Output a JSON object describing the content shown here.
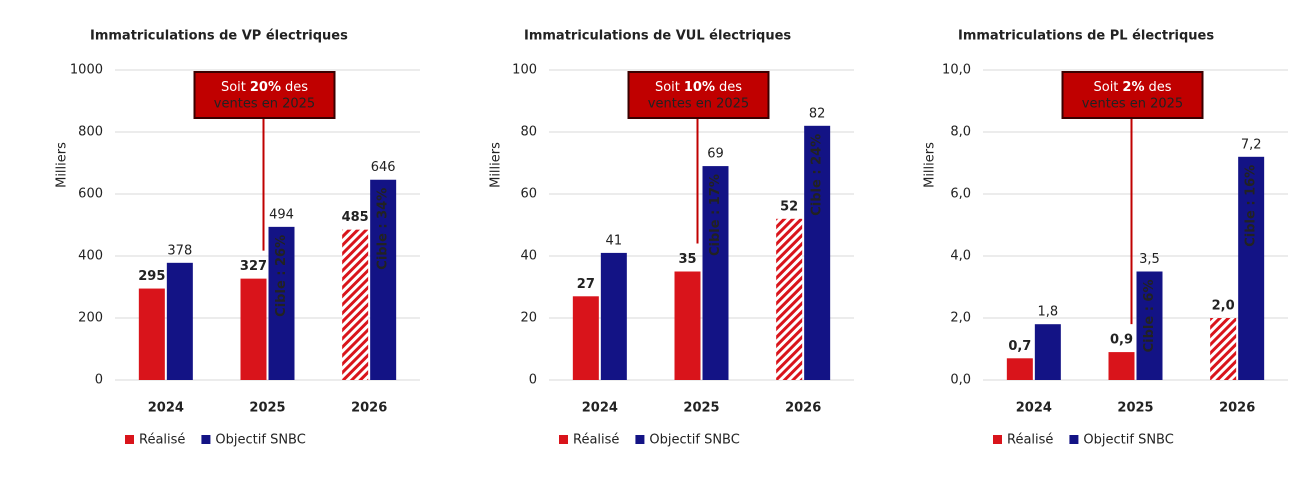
{
  "chart_data": [
    {
      "type": "bar",
      "title": "Immatriculations de VP électriques",
      "y_label": "Milliers",
      "categories": [
        "2024",
        "2025",
        "2026"
      ],
      "series": [
        {
          "name": "Réalisé",
          "color": "#d9141b",
          "values": [
            295,
            327,
            485
          ],
          "hatched": [
            false,
            false,
            true
          ]
        },
        {
          "name": "Objectif SNBC",
          "color": "#131385",
          "values": [
            378,
            494,
            646
          ],
          "inner_labels": [
            null,
            "Cible : 26%",
            "Cible : 34%"
          ]
        }
      ],
      "ylim": [
        0,
        1000
      ],
      "yticks": [
        0,
        200,
        400,
        600,
        800,
        1000
      ],
      "grid": true,
      "annotation": [
        "Soit",
        "20%",
        "des",
        "ventes en 2025"
      ]
    },
    {
      "type": "bar",
      "title": "Immatriculations de VUL électriques",
      "y_label": "Milliers",
      "categories": [
        "2024",
        "2025",
        "2026"
      ],
      "series": [
        {
          "name": "Réalisé",
          "color": "#d9141b",
          "values": [
            27,
            35,
            52
          ],
          "hatched": [
            false,
            false,
            true
          ]
        },
        {
          "name": "Objectif SNBC",
          "color": "#131385",
          "values": [
            41,
            69,
            82
          ],
          "inner_labels": [
            null,
            "Cible : 17%",
            "Cible : 24%"
          ]
        }
      ],
      "ylim": [
        0,
        100
      ],
      "yticks": [
        0,
        20,
        40,
        60,
        80,
        100
      ],
      "grid": true,
      "annotation": [
        "Soit",
        "10%",
        "des",
        "ventes en 2025"
      ]
    },
    {
      "type": "bar",
      "title": "Immatriculations de PL électriques",
      "y_label": "Milliers",
      "categories": [
        "2024",
        "2025",
        "2026"
      ],
      "series": [
        {
          "name": "Réalisé",
          "color": "#d9141b",
          "values": [
            0.7,
            0.9,
            2.0
          ],
          "value_labels": [
            "0,7",
            "0,9",
            "2,0"
          ],
          "hatched": [
            false,
            false,
            true
          ]
        },
        {
          "name": "Objectif SNBC",
          "color": "#131385",
          "values": [
            1.8,
            3.5,
            7.2
          ],
          "value_labels": [
            "1,8",
            "3,5",
            "7,2"
          ],
          "inner_labels": [
            null,
            "Cible : 6%",
            "Cible : 16%"
          ]
        }
      ],
      "ylim": [
        0,
        10
      ],
      "yticks": [
        {
          "value": 0,
          "label": "0,0"
        },
        {
          "value": 2,
          "label": "2,0"
        },
        {
          "value": 4,
          "label": "4,0"
        },
        {
          "value": 6,
          "label": "6,0"
        },
        {
          "value": 8,
          "label": "8,0"
        },
        {
          "value": 10,
          "label": "10,0"
        }
      ],
      "grid": true,
      "annotation": [
        "Soit",
        "2%",
        "des",
        "ventes en 2025"
      ]
    }
  ]
}
